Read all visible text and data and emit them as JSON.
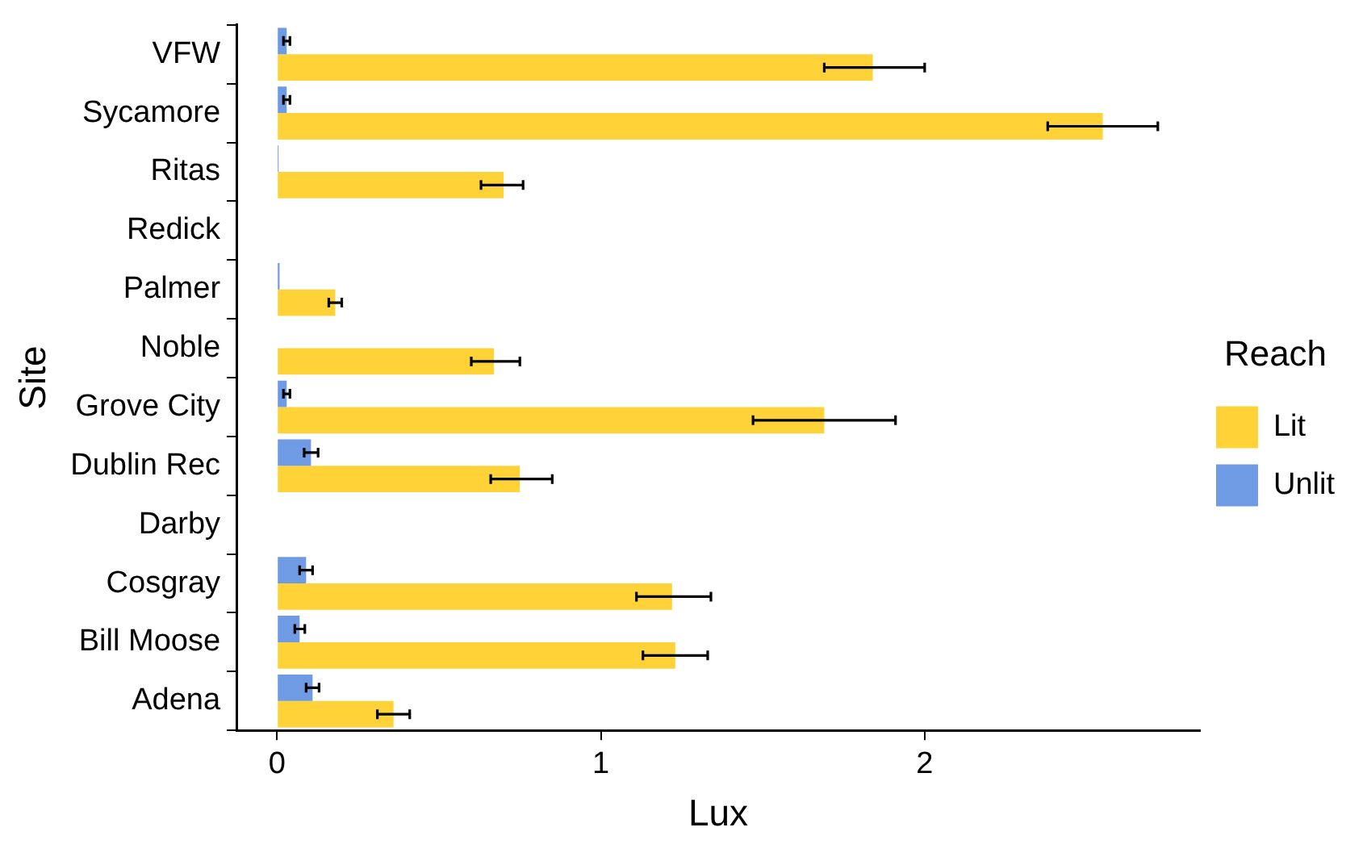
{
  "chart_data": {
    "type": "bar",
    "orientation": "horizontal",
    "xlabel": "Lux",
    "ylabel": "Site",
    "legend_title": "Reach",
    "legend": "right",
    "grid": false,
    "categories": [
      "VFW",
      "Sycamore",
      "Ritas",
      "Redick",
      "Palmer",
      "Noble",
      "Grove City",
      "Dublin Rec",
      "Darby",
      "Cosgray",
      "Bill Moose",
      "Adena"
    ],
    "xlim": [
      -0.125,
      2.85
    ],
    "xticks": [
      0,
      1,
      2
    ],
    "series": [
      {
        "name": "Lit",
        "color": "#ffd337",
        "values": [
          1.84,
          2.55,
          0.7,
          0,
          0.18,
          0.67,
          1.69,
          0.75,
          0,
          1.22,
          1.23,
          0.36
        ],
        "errors": [
          [
            1.69,
            2.0
          ],
          [
            2.38,
            2.72
          ],
          [
            0.63,
            0.76
          ],
          null,
          [
            0.16,
            0.2
          ],
          [
            0.6,
            0.75
          ],
          [
            1.47,
            1.91
          ],
          [
            0.66,
            0.85
          ],
          null,
          [
            1.11,
            1.34
          ],
          [
            1.13,
            1.33
          ],
          [
            0.31,
            0.41
          ]
        ]
      },
      {
        "name": "Unlit",
        "color": "#6f9be4",
        "values": [
          0.03,
          0.03,
          0.005,
          null,
          0.008,
          null,
          0.03,
          0.105,
          null,
          0.09,
          0.07,
          0.11
        ],
        "errors": [
          [
            0.02,
            0.04
          ],
          [
            0.02,
            0.04
          ],
          null,
          null,
          null,
          null,
          [
            0.02,
            0.04
          ],
          [
            0.084,
            0.127
          ],
          null,
          [
            0.07,
            0.11
          ],
          [
            0.055,
            0.086
          ],
          [
            0.09,
            0.13
          ]
        ]
      }
    ]
  }
}
